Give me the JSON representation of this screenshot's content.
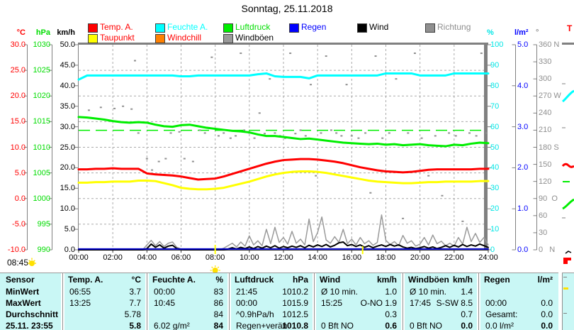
{
  "title": "Sonntag, 25.11.2018",
  "sun": {
    "sunrise_label": "08:45",
    "sunrise_h": 8.0,
    "sunset_h": 16.64
  },
  "next_panel_label": "T",
  "legend": {
    "row1": [
      {
        "label": "Temp. A.",
        "box": "#ff0000",
        "text": "#ff0000"
      },
      {
        "label": "Feuchte A.",
        "box": "#00ffff",
        "text": "#00ffff"
      },
      {
        "label": "Luftdruck",
        "box": "#00ee00",
        "text": "#00dd00"
      },
      {
        "label": "Regen",
        "box": "#0000ff",
        "text": "#0000ff"
      },
      {
        "label": "Wind",
        "box": "#000000",
        "text": "#000000"
      },
      {
        "label": "Richtung",
        "box": "#8f8f8f",
        "text": "#8f8f8f"
      }
    ],
    "row2": [
      {
        "label": "Taupunkt",
        "box": "#ffff00",
        "text": "#ff0000"
      },
      {
        "label": "Windchill",
        "box": "#ff8000",
        "text": "#ff0000"
      },
      {
        "label": "Windböen",
        "box": "#9a9a9a",
        "text": "#000000"
      }
    ]
  },
  "axes": {
    "left": [
      {
        "unit": "°C",
        "color": "#ff0000",
        "labels": [
          "30.0",
          "25.0",
          "20.0",
          "15.0",
          "10.0",
          "5.0",
          "0.0",
          "-5.0",
          "-10.0"
        ]
      },
      {
        "unit": "hPa",
        "color": "#00dd00",
        "labels": [
          "1030",
          "1025",
          "1020",
          "1015",
          "1010",
          "1005",
          "1000",
          "995",
          "990"
        ]
      },
      {
        "unit": "km/h",
        "color": "#000000",
        "labels": [
          "50.0",
          "45.0",
          "40.0",
          "35.0",
          "30.0",
          "25.0",
          "20.0",
          "15.0",
          "10.0",
          "5.0",
          "0.0"
        ]
      }
    ],
    "right": [
      {
        "unit": "%",
        "color": "#00e5e5",
        "labels": [
          "100",
          "90",
          "80",
          "70",
          "60",
          "50",
          "40",
          "30",
          "20",
          "10",
          "0"
        ]
      },
      {
        "unit": "l/m²",
        "color": "#0000ff",
        "labels": [
          "5.0",
          "4.0",
          "3.0",
          "2.0",
          "1.0",
          "0.0"
        ]
      },
      {
        "unit": "°",
        "color": "#8f8f8f",
        "labels": [
          "360 N",
          "330",
          "300",
          "270 W",
          "240",
          "210",
          "180 S",
          "150",
          "120",
          "90  O",
          "60",
          "30",
          "0   N"
        ]
      }
    ]
  },
  "x_axis": {
    "labels": [
      "00:00",
      "02:00",
      "04:00",
      "06:00",
      "08:00",
      "10:00",
      "12:00",
      "14:00",
      "16:00",
      "18:00",
      "20:00",
      "22:00",
      "24:00"
    ]
  },
  "chart_data": {
    "type": "line",
    "title": "Sonntag, 25.11.2018",
    "x_range_hours": [
      0,
      24
    ],
    "grid": {
      "x_step_h": 2,
      "y_divisions": 8
    },
    "scales": {
      "degC": [
        -10,
        30
      ],
      "hpa": [
        990,
        1030
      ],
      "pct": [
        0,
        100
      ],
      "kmh": [
        0,
        50
      ],
      "lm2": [
        0,
        5
      ],
      "deg": [
        0,
        360
      ]
    },
    "reference_lines": [
      {
        "name": "luftdruck-mittel",
        "scale": "hpa",
        "value": 1013.3,
        "color": "#00ee00"
      }
    ],
    "series": [
      {
        "name": "Richtung",
        "type": "dots",
        "scale": "deg",
        "color": "#8f8f8f",
        "points": [
          [
            0.6,
            245
          ],
          [
            1.3,
            250
          ],
          [
            2.1,
            248
          ],
          [
            2.6,
            252
          ],
          [
            3.1,
            247
          ],
          [
            3.3,
            332
          ],
          [
            3.5,
            205
          ],
          [
            4.0,
            160
          ],
          [
            4.3,
            140
          ],
          [
            4.7,
            155
          ],
          [
            5.1,
            160
          ],
          [
            5.4,
            205
          ],
          [
            5.9,
            207
          ],
          [
            6.2,
            160
          ],
          [
            6.7,
            155
          ],
          [
            7.1,
            210
          ],
          [
            7.4,
            205
          ],
          [
            7.8,
            338
          ],
          [
            8.2,
            200
          ],
          [
            8.5,
            205
          ],
          [
            8.9,
            196
          ],
          [
            9.2,
            200
          ],
          [
            9.5,
            345
          ],
          [
            9.7,
            210
          ],
          [
            10.0,
            205
          ],
          [
            10.3,
            196
          ],
          [
            10.6,
            240
          ],
          [
            10.9,
            204
          ],
          [
            11.2,
            300
          ],
          [
            11.5,
            205
          ],
          [
            11.8,
            200
          ],
          [
            12.1,
            196
          ],
          [
            12.4,
            345
          ],
          [
            12.7,
            204
          ],
          [
            13.0,
            210
          ],
          [
            13.3,
            200
          ],
          [
            13.6,
            290
          ],
          [
            13.9,
            130
          ],
          [
            14.2,
            205
          ],
          [
            14.5,
            340
          ],
          [
            14.8,
            210
          ],
          [
            15.1,
            205
          ],
          [
            15.4,
            200
          ],
          [
            15.7,
            290
          ],
          [
            16.0,
            200
          ],
          [
            16.4,
            196
          ],
          [
            16.8,
            205
          ],
          [
            17.1,
            100
          ],
          [
            17.4,
            340
          ],
          [
            17.8,
            196
          ],
          [
            18.2,
            205
          ],
          [
            18.6,
            300
          ],
          [
            19.0,
            55
          ],
          [
            19.3,
            205
          ],
          [
            19.7,
            345
          ],
          [
            20.1,
            196
          ],
          [
            20.5,
            130
          ],
          [
            20.9,
            200
          ],
          [
            21.3,
            95
          ],
          [
            21.7,
            205
          ],
          [
            22.1,
            200
          ],
          [
            22.5,
            50
          ],
          [
            22.9,
            205
          ],
          [
            23.3,
            200
          ],
          [
            23.6,
            345
          ],
          [
            23.9,
            205
          ]
        ]
      },
      {
        "name": "Windböen",
        "type": "line",
        "scale": "kmh",
        "color": "#9a9a9a",
        "width": 1.5,
        "step_h": 0.25,
        "values": [
          0,
          0,
          0,
          0,
          0,
          0,
          0,
          0,
          0,
          0,
          0,
          0,
          0,
          0,
          0,
          0,
          1.2,
          2.3,
          1,
          2,
          0.8,
          1.6,
          1.9,
          0.6,
          0.2,
          0,
          0,
          0,
          0,
          0,
          0,
          0,
          0,
          0,
          0.4,
          1,
          1.6,
          0.7,
          1.9,
          0.9,
          3.4,
          1.2,
          2.2,
          1,
          5,
          1.5,
          5.5,
          1.8,
          3,
          1.4,
          4.5,
          1.6,
          2.6,
          1.2,
          7.5,
          2,
          4.2,
          8,
          2.4,
          1.6,
          3.2,
          1.8,
          5,
          1.5,
          2.6,
          1.2,
          3,
          1.5,
          2.2,
          1.1,
          1.8,
          8.5,
          2.3,
          1.3,
          2,
          1,
          3.5,
          1.6,
          2.2,
          0.9,
          1.4,
          3,
          1.2,
          3.6,
          1.5,
          2.1,
          1,
          1.6,
          0.9,
          3,
          1.4,
          5.5,
          2,
          4,
          1.8,
          3,
          1.2
        ]
      },
      {
        "name": "Wind",
        "type": "line",
        "scale": "kmh",
        "color": "#000000",
        "width": 2,
        "step_h": 0.25,
        "values": [
          0,
          0,
          0,
          0,
          0,
          0,
          0,
          0,
          0,
          0,
          0,
          0,
          0,
          0,
          0,
          0,
          0.3,
          1.4,
          0.6,
          1.2,
          0.4,
          0.9,
          1.1,
          0.3,
          0.1,
          0,
          0,
          0,
          0,
          0,
          0,
          0,
          0,
          0,
          0,
          0.2,
          0.5,
          0.2,
          0.6,
          0.3,
          0.7,
          0.3,
          0.8,
          0.4,
          0.9,
          0.5,
          1,
          0.4,
          0.8,
          0.5,
          0.9,
          0.6,
          1,
          0.5,
          1.1,
          0.7,
          1.2,
          0.8,
          1.3,
          0.7,
          1.1,
          1.7,
          1.9,
          1,
          1.3,
          0.8,
          1.2,
          0.6,
          1,
          0.5,
          0.9,
          1.2,
          0.8,
          1.3,
          0.9,
          1.2,
          0.7,
          0.4,
          0.6,
          0.3,
          0.5,
          0.8,
          0.4,
          0.7,
          0.3,
          0.6,
          1,
          0.6,
          1.1,
          0.7,
          1.3,
          0.8,
          1.2,
          0.9,
          1.4,
          1,
          0.6
        ]
      },
      {
        "name": "Regen",
        "type": "line",
        "scale": "lm2",
        "color": "#0000c8",
        "width": 2,
        "step_h": 24,
        "values": [
          0.02,
          0.02
        ]
      },
      {
        "name": "Luftdruck",
        "type": "line",
        "scale": "hpa",
        "color": "#00ee00",
        "width": 3,
        "step_h": 0.5,
        "values": [
          1015.9,
          1015.8,
          1015.6,
          1015.4,
          1015.1,
          1014.9,
          1014.8,
          1014.9,
          1014.8,
          1014.4,
          1014.1,
          1014,
          1014.3,
          1014.4,
          1014.1,
          1013.8,
          1013.6,
          1013.4,
          1013.2,
          1013.1,
          1012.9,
          1012.5,
          1012.2,
          1012.2,
          1012,
          1011.8,
          1011.6,
          1011.7,
          1011.5,
          1011.3,
          1011.1,
          1010.9,
          1010.8,
          1010.7,
          1010.6,
          1010.7,
          1010.5,
          1010.6,
          1010.4,
          1010.5,
          1010.6,
          1010.4,
          1010.3,
          1010.2,
          1010.5,
          1010.4,
          1010.7,
          1010.9,
          1010.8
        ]
      },
      {
        "name": "Feuchte A.",
        "type": "line",
        "scale": "pct",
        "color": "#00ffff",
        "width": 3,
        "step_h": 0.5,
        "values": [
          83,
          85,
          85,
          85,
          85,
          85,
          85,
          85,
          85,
          85,
          85,
          85,
          84.6,
          84.6,
          85,
          85,
          85,
          85,
          85,
          85,
          85,
          85.6,
          86,
          84.6,
          84.3,
          84.3,
          84.3,
          83.6,
          85,
          85,
          85,
          85,
          85,
          85,
          85,
          85,
          86,
          86,
          86,
          86,
          85,
          85,
          85,
          85,
          86,
          86,
          86,
          86,
          86
        ]
      },
      {
        "name": "Taupunkt",
        "type": "line",
        "scale": "degC",
        "color": "#ffff00",
        "width": 3,
        "step_h": 0.5,
        "values": [
          3.1,
          3.1,
          3.2,
          3.2,
          3.3,
          3.3,
          3.3,
          3.5,
          3.5,
          3.4,
          3,
          2.6,
          2.1,
          1.9,
          1.8,
          1.8,
          1.9,
          2.1,
          2.5,
          2.9,
          3.3,
          3.8,
          4.3,
          4.7,
          5,
          5.2,
          5.3,
          5.3,
          5.2,
          5,
          4.7,
          4.4,
          4.1,
          3.8,
          3.5,
          3.3,
          3.2,
          3.1,
          3,
          3,
          3.1,
          3.2,
          3.2,
          3.3,
          3.3,
          3.3,
          3.3,
          3.4,
          3.4
        ]
      },
      {
        "name": "Temp. A.",
        "type": "line",
        "scale": "degC",
        "color": "#ff0000",
        "width": 3,
        "step_h": 0.5,
        "values": [
          5.7,
          5.7,
          5.8,
          5.8,
          5.9,
          5.8,
          5.8,
          5.8,
          4.9,
          4.7,
          4.6,
          4.5,
          4.3,
          4,
          3.7,
          3.8,
          3.9,
          4.3,
          4.8,
          5.3,
          5.8,
          6.3,
          6.8,
          7.2,
          7.5,
          7.6,
          7.7,
          7.7,
          7.6,
          7.4,
          7.2,
          6.9,
          6.5,
          6.1,
          5.8,
          5.5,
          5.3,
          5.2,
          5.1,
          5.2,
          5.4,
          5.6,
          5.7,
          5.7,
          5.7,
          5.7,
          5.7,
          5.8,
          5.8
        ]
      }
    ]
  },
  "table": {
    "columns": [
      {
        "label": "Sensor",
        "unit": ""
      },
      {
        "label": "Temp. A.",
        "unit": "°C"
      },
      {
        "label": "Feuchte A.",
        "unit": "%"
      },
      {
        "label": "Luftdruck",
        "unit": "hPa"
      },
      {
        "label": "Wind",
        "unit": "km/h"
      },
      {
        "label": "Windböen",
        "unit": "km/h"
      },
      {
        "label": "Regen",
        "unit": "l/m²"
      }
    ],
    "rows": [
      {
        "label": "MinWert",
        "bold": false,
        "cells": [
          [
            "06:55",
            "3.7"
          ],
          [
            "00:00",
            "83"
          ],
          [
            "21:45",
            "1010.2"
          ],
          [
            "Ø 10 min.",
            "1.0"
          ],
          [
            "Ø 10 min.",
            "1.4"
          ],
          [
            "",
            ""
          ]
        ]
      },
      {
        "label": "MaxWert",
        "bold": false,
        "cells": [
          [
            "13:25",
            "7.7"
          ],
          [
            "10:45",
            "86"
          ],
          [
            "00:00",
            "1015.9"
          ],
          [
            "15:25",
            "O-NO 1.9"
          ],
          [
            "17:45",
            "S-SW 8.5"
          ],
          [
            "00:00",
            "0.0"
          ]
        ]
      },
      {
        "label": "Durchschnitt",
        "bold": false,
        "cells": [
          [
            "",
            "5.78"
          ],
          [
            "",
            "84"
          ],
          [
            "^0.9hPa/h",
            "1012.5"
          ],
          [
            "",
            "0.3"
          ],
          [
            "",
            "0.7"
          ],
          [
            "Gesamt:",
            "0.0"
          ]
        ]
      },
      {
        "label": "25.11. 23:55",
        "bold": true,
        "cells": [
          [
            "",
            "5.8"
          ],
          [
            "6.02 g/m²",
            "84"
          ],
          [
            "Regen+verän",
            "1010.8"
          ],
          [
            "0 Bft NO",
            "0.6"
          ],
          [
            "0 Bft NO",
            "0.0"
          ],
          [
            "0.0 l/m²",
            "0.0"
          ]
        ]
      }
    ]
  }
}
